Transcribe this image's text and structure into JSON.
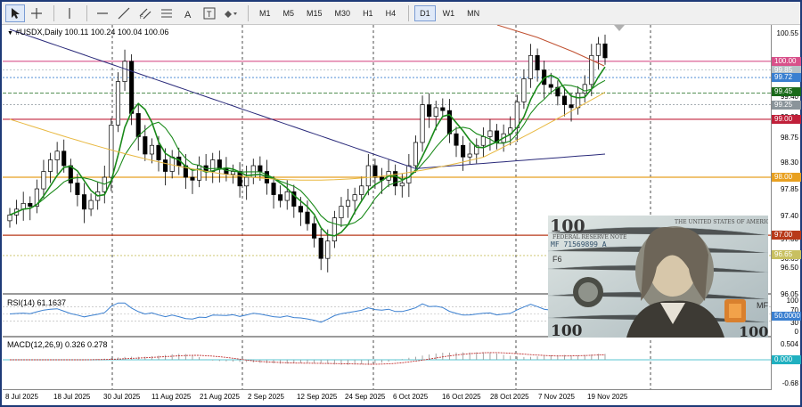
{
  "toolbar": {
    "tools": [
      {
        "name": "cursor-icon",
        "glyph": "➚"
      },
      {
        "name": "crosshair-icon",
        "glyph": "+"
      },
      {
        "name": "vertical-line-icon",
        "glyph": "│"
      },
      {
        "name": "horizontal-line-icon",
        "glyph": "─"
      },
      {
        "name": "trendline-icon",
        "glyph": "╱"
      },
      {
        "name": "channel-icon",
        "glyph": "⫽"
      },
      {
        "name": "fibonacci-icon",
        "glyph": "≡"
      },
      {
        "name": "text-icon",
        "glyph": "A"
      },
      {
        "name": "text-label-icon",
        "glyph": "T"
      },
      {
        "name": "shapes-icon",
        "glyph": "⬘"
      }
    ],
    "timeframes": [
      "M1",
      "M5",
      "M15",
      "M30",
      "H1",
      "H4",
      "D1",
      "W1",
      "MN"
    ],
    "active_timeframe": "D1"
  },
  "chart": {
    "symbol_line": "#USDX,Daily  100.11 100.24 100.04 100.06",
    "rsi_label": "RSI(14) 61.1637",
    "macd_label": "MACD(12,26,9) 0.326 0.278"
  },
  "price_axis": {
    "ticks": [
      "100.55",
      "100.00",
      "99.72",
      "99.40",
      "99.00",
      "98.75",
      "98.30",
      "97.85",
      "97.40",
      "97.00",
      "96.65",
      "96.50",
      "96.05"
    ],
    "tags": [
      {
        "label": "100.00",
        "color": "#d8508a"
      },
      {
        "label": "99.85",
        "color": "#b8c2c8"
      },
      {
        "label": "99.72",
        "color": "#3a7fd0"
      },
      {
        "label": "99.45",
        "color": "#1a6a1a"
      },
      {
        "label": "99.25",
        "color": "#8a949a"
      },
      {
        "label": "99.00",
        "color": "#c0203a"
      },
      {
        "label": "98.00",
        "color": "#e8a020"
      },
      {
        "label": "97.00",
        "color": "#b83a1a"
      },
      {
        "label": "96.65",
        "color": "#c8c060"
      }
    ]
  },
  "rsi_axis": {
    "ticks": [
      "100",
      "70",
      "30",
      "0"
    ],
    "tag": "50.0000"
  },
  "macd_axis": {
    "ticks": [
      "0.504",
      "-0.68"
    ],
    "tag": "0.000"
  },
  "time_axis": {
    "labels": [
      "8 Jul 2025",
      "18 Jul 2025",
      "30 Jul 2025",
      "11 Aug 2025",
      "21 Aug 2025",
      "2 Sep 2025",
      "12 Sep 2025",
      "24 Sep 2025",
      "6 Oct 2025",
      "16 Oct 2025",
      "28 Oct 2025",
      "7 Nov 2025",
      "19 Nov 2025"
    ]
  },
  "banknote": {
    "denomination": "100",
    "header": "THE UNITED STATES OF AMERICA",
    "bank": "FEDERAL RESERVE NOTE",
    "serial": "MF 71569899 A",
    "seal_code": "F6",
    "corner_code": "MF"
  },
  "colors": {
    "candle_bull": "#ffffff",
    "candle_bear": "#000000",
    "ma_fast": "#1a8a1a",
    "ma_slow": "#2a2a7a",
    "ma_gold": "#e8b840",
    "ma_red": "#c05030",
    "rsi_line": "#3a7fd0",
    "macd_signal": "#c03030"
  }
}
